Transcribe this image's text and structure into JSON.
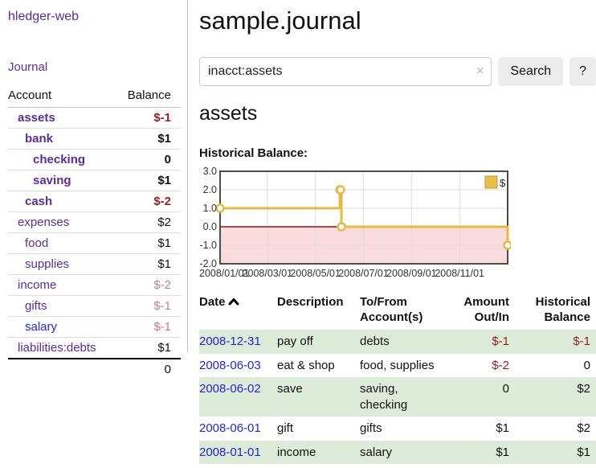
{
  "colors": {
    "purple_link": "#562e9e",
    "blue_link": "#2424dd",
    "negative": "#9e1c1c",
    "negative_muted": "#c58181",
    "row_stripe": "#dcecd8",
    "button_bg": "#ececec"
  },
  "sidebar": {
    "brand": "hledger-web",
    "journal_link": "Journal",
    "accounts_header": {
      "account": "Account",
      "balance": "Balance"
    },
    "accounts": [
      {
        "label": "assets",
        "depth": 1,
        "bold": true,
        "link": "purple",
        "balance": "$-1",
        "amount_class": "neg-strong"
      },
      {
        "label": "bank",
        "depth": 2,
        "bold": true,
        "link": "purple",
        "balance": "$1",
        "amount_class": ""
      },
      {
        "label": "checking",
        "depth": 3,
        "bold": true,
        "link": "purple",
        "balance": "0",
        "amount_class": ""
      },
      {
        "label": "saving",
        "depth": 3,
        "bold": true,
        "link": "purple",
        "balance": "$1",
        "amount_class": ""
      },
      {
        "label": "cash",
        "depth": 2,
        "bold": true,
        "link": "purple",
        "balance": "$-2",
        "amount_class": "neg-strong"
      },
      {
        "label": "expenses",
        "depth": 1,
        "bold": false,
        "link": "purple",
        "balance": "$2",
        "amount_class": ""
      },
      {
        "label": "food",
        "depth": 2,
        "bold": false,
        "link": "purple",
        "balance": "$1",
        "amount_class": ""
      },
      {
        "label": "supplies",
        "depth": 2,
        "bold": false,
        "link": "purple",
        "balance": "$1",
        "amount_class": ""
      },
      {
        "label": "income",
        "depth": 1,
        "bold": false,
        "link": "purple",
        "balance": "$-2",
        "amount_class": "neg-soft"
      },
      {
        "label": "gifts",
        "depth": 2,
        "bold": false,
        "link": "purple",
        "balance": "$-1",
        "amount_class": "neg-soft"
      },
      {
        "label": "salary",
        "depth": 2,
        "bold": false,
        "link": "blue",
        "balance": "$-1",
        "amount_class": "neg-soft"
      },
      {
        "label": "liabilities:debts",
        "depth": 1,
        "bold": false,
        "link": "purple",
        "balance": "$1",
        "amount_class": ""
      }
    ],
    "total": "0"
  },
  "main": {
    "title": "sample.journal",
    "search": {
      "value": "inacct:assets",
      "clear_icon": "×",
      "button_label": "Search",
      "help_label": "?"
    },
    "account_heading": "assets",
    "chart_label": "Historical Balance:"
  },
  "chart_data": {
    "type": "line",
    "title": "Historical Balance",
    "step": "after",
    "ylim": [
      -2,
      3
    ],
    "y_ticks": [
      3,
      2,
      1,
      0,
      -1,
      -2
    ],
    "x_domain_days": [
      0,
      365
    ],
    "x_tick_days": [
      0,
      60,
      121,
      182,
      243,
      304
    ],
    "x_tick_labels": [
      "2008/01/01",
      "2008/03/01",
      "2008/05/01",
      "2008/07/01",
      "2008/09/01",
      "2008/11/01"
    ],
    "legend": [
      {
        "label": "$",
        "color": "#e6c04a",
        "border": "#bf992f"
      }
    ],
    "series": [
      {
        "name": "$",
        "points": [
          {
            "date": "2008-01-01",
            "day": 0,
            "value": 1
          },
          {
            "date": "2008-06-01",
            "day": 152,
            "value": 2
          },
          {
            "date": "2008-06-02",
            "day": 153,
            "value": 2
          },
          {
            "date": "2008-06-03",
            "day": 154,
            "value": 0
          },
          {
            "date": "2008-12-31",
            "day": 365,
            "value": -1
          }
        ]
      }
    ],
    "line_color": "#e3ba44",
    "negative_region_color": "#fbdcdc",
    "zero_line_color": "#8f1010",
    "frame_color": "#4d4d4d",
    "grid_color": "#dddddd"
  },
  "register": {
    "headers": {
      "date": "Date",
      "description": "Description",
      "tofrom": "To/From Account(s)",
      "amount": "Amount Out/In",
      "balance": "Historical Balance"
    },
    "rows": [
      {
        "date": "2008-12-31",
        "description": "pay off",
        "accounts": "debts",
        "amount": "$-1",
        "amount_negative": true,
        "balance": "$-1",
        "balance_negative": true
      },
      {
        "date": "2008-06-03",
        "description": "eat & shop",
        "accounts": "food, supplies",
        "amount": "$-2",
        "amount_negative": true,
        "balance": "0",
        "balance_negative": false
      },
      {
        "date": "2008-06-02",
        "description": "save",
        "accounts": "saving, checking",
        "amount": "0",
        "amount_negative": false,
        "balance": "$2",
        "balance_negative": false
      },
      {
        "date": "2008-06-01",
        "description": "gift",
        "accounts": "gifts",
        "amount": "$1",
        "amount_negative": false,
        "balance": "$2",
        "balance_negative": false
      },
      {
        "date": "2008-01-01",
        "description": "income",
        "accounts": "salary",
        "amount": "$1",
        "amount_negative": false,
        "balance": "$1",
        "balance_negative": false
      }
    ]
  }
}
